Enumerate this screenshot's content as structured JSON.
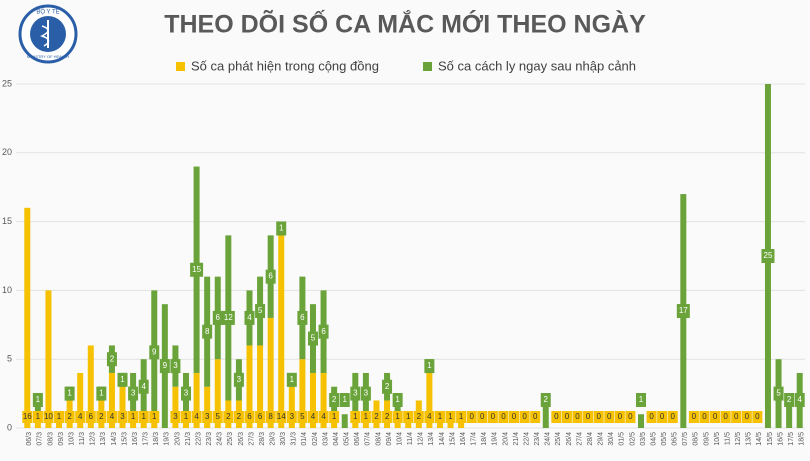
{
  "logo": {
    "top": "BỘ Y TẾ",
    "bottom": "MINISTRY OF HEALTH"
  },
  "chart_data": {
    "type": "stacked-bar",
    "title": "THEO DÕI SỐ CA MẮC MỚI THEO NGÀY",
    "categories": [
      "06/3",
      "07/3",
      "08/3",
      "09/3",
      "10/3",
      "11/3",
      "12/3",
      "13/3",
      "14/3",
      "15/3",
      "16/3",
      "17/3",
      "18/3",
      "19/3",
      "20/3",
      "21/3",
      "22/3",
      "23/3",
      "24/3",
      "25/3",
      "26/3",
      "27/3",
      "28/3",
      "29/3",
      "30/3",
      "31/3",
      "01/4",
      "02/4",
      "03/4",
      "04/4",
      "05/4",
      "06/4",
      "07/4",
      "08/4",
      "09/4",
      "10/4",
      "11/4",
      "12/4",
      "13/4",
      "14/4",
      "15/4",
      "16/4",
      "17/4",
      "18/4",
      "19/4",
      "20/4",
      "21/4",
      "22/4",
      "23/4",
      "24/4",
      "25/4",
      "26/4",
      "27/4",
      "28/4",
      "29/4",
      "30/4",
      "01/5",
      "02/5",
      "03/5",
      "04/5",
      "05/5",
      "06/5",
      "07/5",
      "08/5",
      "09/5",
      "10/5",
      "11/5",
      "12/5",
      "13/5",
      "14/5",
      "15/5",
      "16/5",
      "17/5",
      "18/5"
    ],
    "series": [
      {
        "name": "Số ca phát hiện trong cộng đồng",
        "color": "#f5c100",
        "values": [
          16,
          1,
          10,
          1,
          2,
          4,
          6,
          2,
          4,
          3,
          1,
          1,
          1,
          0,
          3,
          1,
          4,
          3,
          5,
          2,
          2,
          6,
          6,
          8,
          14,
          3,
          5,
          4,
          4,
          1,
          0,
          1,
          1,
          2,
          2,
          1,
          1,
          2,
          4,
          1,
          1,
          1,
          0,
          0,
          0,
          0,
          0,
          0,
          0,
          0,
          0,
          0,
          0,
          0,
          0,
          0,
          0,
          0,
          0,
          0,
          0,
          0,
          0,
          0,
          0,
          0,
          0,
          0,
          0,
          0,
          0,
          0,
          0,
          0
        ]
      },
      {
        "name": "Số ca cách ly ngay sau nhập cảnh",
        "color": "#6aa33a",
        "values": [
          0,
          1,
          0,
          0,
          1,
          0,
          0,
          1,
          2,
          1,
          3,
          4,
          9,
          9,
          3,
          3,
          15,
          8,
          6,
          12,
          3,
          4,
          5,
          6,
          1,
          1,
          6,
          5,
          6,
          2,
          1,
          3,
          3,
          0,
          2,
          1,
          0,
          0,
          1,
          0,
          0,
          0,
          0,
          0,
          0,
          0,
          0,
          0,
          0,
          2,
          0,
          0,
          0,
          0,
          0,
          0,
          0,
          0,
          1,
          0,
          0,
          0,
          17,
          0,
          0,
          0,
          0,
          0,
          0,
          0,
          25,
          5,
          2,
          4
        ]
      }
    ],
    "ylim": [
      0,
      25
    ],
    "yticks": [
      0,
      5,
      10,
      15,
      20,
      25
    ],
    "grid": true
  }
}
